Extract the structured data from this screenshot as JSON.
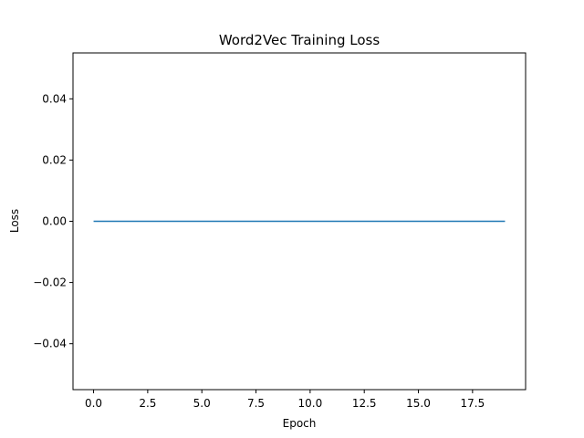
{
  "chart_data": {
    "type": "line",
    "title": "Word2Vec Training Loss",
    "xlabel": "Epoch",
    "ylabel": "Loss",
    "xlim": [
      -0.95,
      19.95
    ],
    "ylim": [
      -0.055,
      0.055
    ],
    "x_ticks": [
      0.0,
      2.5,
      5.0,
      7.5,
      10.0,
      12.5,
      15.0,
      17.5
    ],
    "x_tick_labels": [
      "0.0",
      "2.5",
      "5.0",
      "7.5",
      "10.0",
      "12.5",
      "15.0",
      "17.5"
    ],
    "y_ticks": [
      0.04,
      0.02,
      0.0,
      -0.02,
      -0.04
    ],
    "y_tick_labels": [
      "0.04",
      "0.02",
      "0.00",
      "−0.02",
      "−0.04"
    ],
    "grid": false,
    "series": [
      {
        "color": "#1f77b4",
        "x": [
          0,
          1,
          2,
          3,
          4,
          5,
          6,
          7,
          8,
          9,
          10,
          11,
          12,
          13,
          14,
          15,
          16,
          17,
          18,
          19
        ],
        "y": [
          0,
          0,
          0,
          0,
          0,
          0,
          0,
          0,
          0,
          0,
          0,
          0,
          0,
          0,
          0,
          0,
          0,
          0,
          0,
          0
        ]
      }
    ]
  }
}
